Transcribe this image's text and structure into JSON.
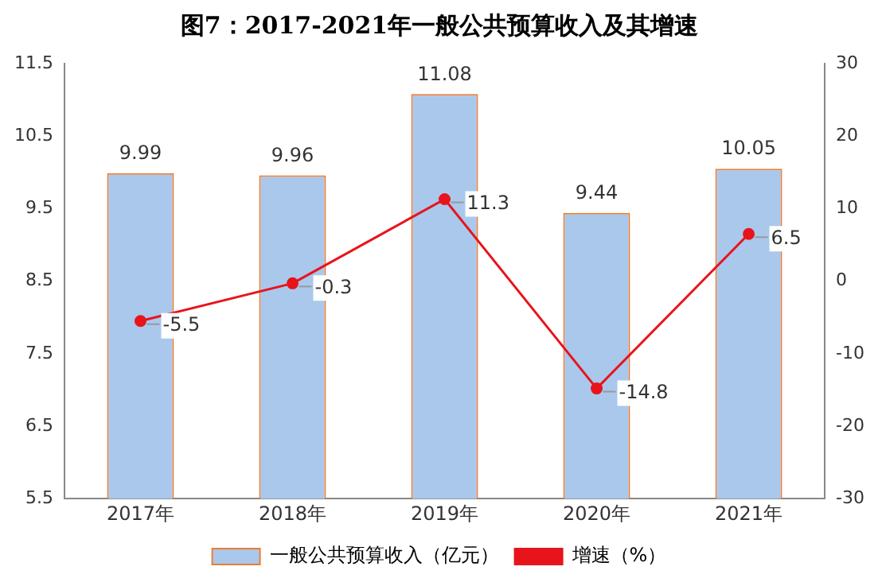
{
  "chart_data": {
    "type": "bar",
    "title": "图7：2017-2021年一般公共预算收入及其增速",
    "categories": [
      "2017年",
      "2018年",
      "2019年",
      "2020年",
      "2021年"
    ],
    "series": [
      {
        "name": "一般公共预算收入（亿元）",
        "color": "#a9c8ec",
        "values": [
          9.99,
          9.96,
          11.08,
          9.44,
          10.05
        ]
      },
      {
        "name": "增速（%）",
        "type": "line",
        "axis": "y2",
        "color": "#e8141b",
        "values": [
          -5.5,
          -0.3,
          11.3,
          -14.8,
          6.5
        ]
      }
    ],
    "ylim": [
      5.5,
      11.5
    ],
    "yticks": [
      5.5,
      6.5,
      7.5,
      8.5,
      9.5,
      10.5,
      11.5
    ],
    "y2lim": [
      -30,
      30
    ],
    "y2ticks": [
      -30,
      -20,
      -10,
      0,
      10,
      20,
      30
    ],
    "grid": false,
    "legend": "bottom",
    "marker": "circle",
    "line_style": "solid",
    "data_labels": true
  }
}
